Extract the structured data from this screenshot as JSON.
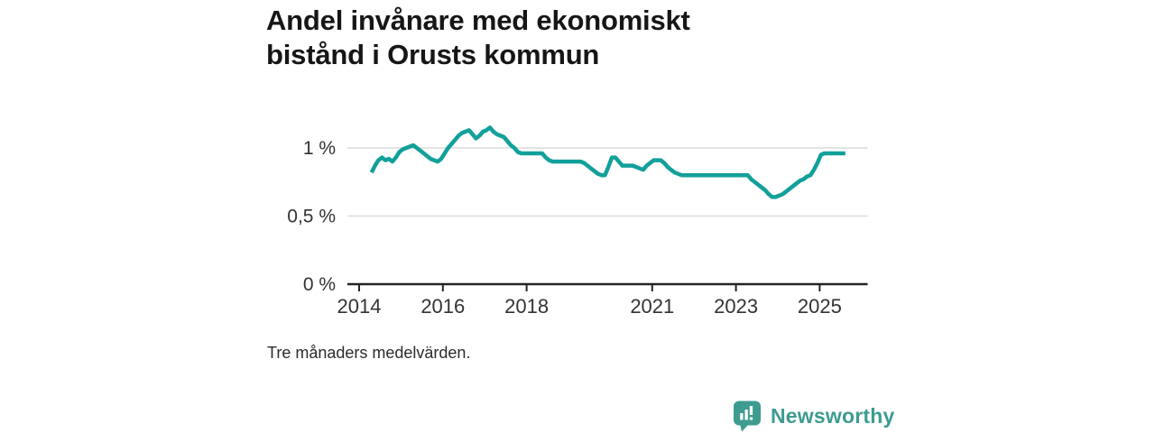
{
  "header": {
    "title": "Andel invånare med ekonomiskt bistånd i Orusts kommun"
  },
  "footnote": "Tre månaders medelvärden.",
  "branding": {
    "name": "Newsworthy",
    "icon": "bar-chart-speech-bubble-icon",
    "icon_color": "#3d9b90",
    "text_color": "#3d9b90"
  },
  "colors": {
    "line": "#12a09a",
    "grid": "#dcdcdc",
    "axis": "#242424",
    "tick_text": "#333333",
    "title_text": "#161616",
    "background": "#ffffff"
  },
  "chart_data": {
    "type": "line",
    "title": "Andel invånare med ekonomiskt bistånd i Orusts kommun",
    "subtitle": "",
    "unit": "%",
    "frequency": "monthly",
    "note": "Tre månaders medelvärden.",
    "x_start": "2014-04",
    "x_end": "2025-08",
    "ylim": [
      0,
      1.25
    ],
    "grid": "horizontal",
    "legend": "none",
    "y_axis": {
      "ticks": [
        {
          "label": "0 %",
          "value": 0
        },
        {
          "label": "0,5 %",
          "value": 0.5
        },
        {
          "label": "1 %",
          "value": 1
        }
      ],
      "gridline_values": [
        0.5,
        1
      ]
    },
    "x_axis": {
      "ticks": [
        {
          "label": "2014",
          "year": 2014
        },
        {
          "label": "2016",
          "year": 2016
        },
        {
          "label": "2018",
          "year": 2018
        },
        {
          "label": "2021",
          "year": 2021
        },
        {
          "label": "2023",
          "year": 2023
        },
        {
          "label": "2025",
          "year": 2025
        }
      ]
    },
    "series": [
      {
        "name": "Andel invånare med ekonomiskt bistånd",
        "start": "2014-04",
        "values": [
          0.82,
          0.87,
          0.91,
          0.93,
          0.91,
          0.92,
          0.9,
          0.93,
          0.97,
          0.99,
          1.0,
          1.01,
          1.02,
          1.0,
          0.98,
          0.96,
          0.94,
          0.92,
          0.91,
          0.9,
          0.92,
          0.96,
          1.0,
          1.03,
          1.06,
          1.09,
          1.11,
          1.12,
          1.13,
          1.1,
          1.07,
          1.09,
          1.12,
          1.13,
          1.15,
          1.12,
          1.1,
          1.09,
          1.08,
          1.05,
          1.02,
          1.0,
          0.97,
          0.96,
          0.96,
          0.96,
          0.96,
          0.96,
          0.96,
          0.96,
          0.93,
          0.91,
          0.9,
          0.9,
          0.9,
          0.9,
          0.9,
          0.9,
          0.9,
          0.9,
          0.9,
          0.89,
          0.87,
          0.85,
          0.83,
          0.81,
          0.8,
          0.8,
          0.86,
          0.93,
          0.93,
          0.9,
          0.87,
          0.87,
          0.87,
          0.87,
          0.86,
          0.85,
          0.84,
          0.87,
          0.89,
          0.91,
          0.91,
          0.91,
          0.89,
          0.86,
          0.84,
          0.82,
          0.81,
          0.8,
          0.8,
          0.8,
          0.8,
          0.8,
          0.8,
          0.8,
          0.8,
          0.8,
          0.8,
          0.8,
          0.8,
          0.8,
          0.8,
          0.8,
          0.8,
          0.8,
          0.8,
          0.8,
          0.8,
          0.77,
          0.75,
          0.73,
          0.71,
          0.69,
          0.66,
          0.64,
          0.64,
          0.65,
          0.66,
          0.68,
          0.7,
          0.72,
          0.74,
          0.76,
          0.77,
          0.79,
          0.8,
          0.84,
          0.89,
          0.95,
          0.96,
          0.96,
          0.96,
          0.96,
          0.96,
          0.96,
          0.96
        ]
      }
    ]
  }
}
